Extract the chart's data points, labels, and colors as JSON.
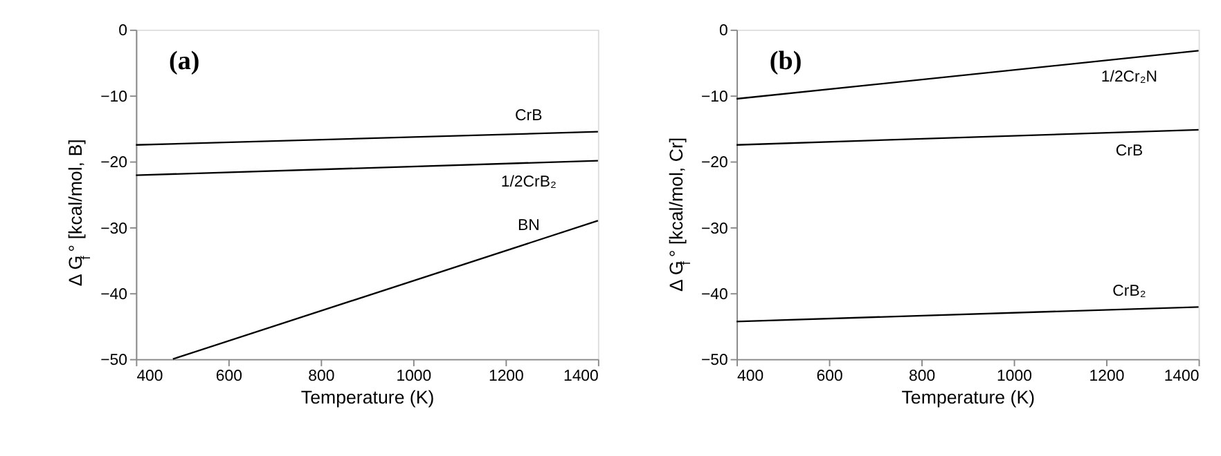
{
  "chart_data": [
    {
      "type": "line",
      "title": "(a)",
      "xlabel": "Temperature (K)",
      "ylabel": "Δ G$_{f}$° [kcal/mol, B]",
      "xlim": [
        400,
        1400
      ],
      "ylim": [
        -50,
        0
      ],
      "xticks": [
        400,
        600,
        800,
        1000,
        1200,
        1400
      ],
      "yticks": [
        -50,
        -40,
        -30,
        -20,
        -10,
        0
      ],
      "grid": false,
      "line_style": "solid",
      "marker": "none",
      "series": [
        {
          "name": "CrB",
          "color": "#000000",
          "x": [
            400,
            1400
          ],
          "values": [
            -17.5,
            -15.5
          ]
        },
        {
          "name": "1/2CrB₂",
          "color": "#000000",
          "x": [
            400,
            1400
          ],
          "values": [
            -22.1,
            -19.9
          ]
        },
        {
          "name": "BN",
          "color": "#000000",
          "x": [
            480,
            1400
          ],
          "values": [
            -50,
            -29
          ]
        }
      ]
    },
    {
      "type": "line",
      "title": "(b)",
      "xlabel": "Temperature (K)",
      "ylabel": "Δ G$_{f}$° [kcal/mol, Cr]",
      "xlim": [
        400,
        1400
      ],
      "ylim": [
        -50,
        0
      ],
      "xticks": [
        400,
        600,
        800,
        1000,
        1200,
        1400
      ],
      "yticks": [
        -50,
        -40,
        -30,
        -20,
        -10,
        0
      ],
      "grid": false,
      "line_style": "solid",
      "marker": "none",
      "series": [
        {
          "name": "1/2Cr₂N",
          "color": "#000000",
          "x": [
            400,
            1400
          ],
          "values": [
            -10.5,
            -3.2
          ]
        },
        {
          "name": "CrB",
          "color": "#000000",
          "x": [
            400,
            1400
          ],
          "values": [
            -17.5,
            -15.2
          ]
        },
        {
          "name": "CrB₂",
          "color": "#000000",
          "x": [
            400,
            1400
          ],
          "values": [
            -44.3,
            -42.1
          ]
        }
      ]
    }
  ]
}
